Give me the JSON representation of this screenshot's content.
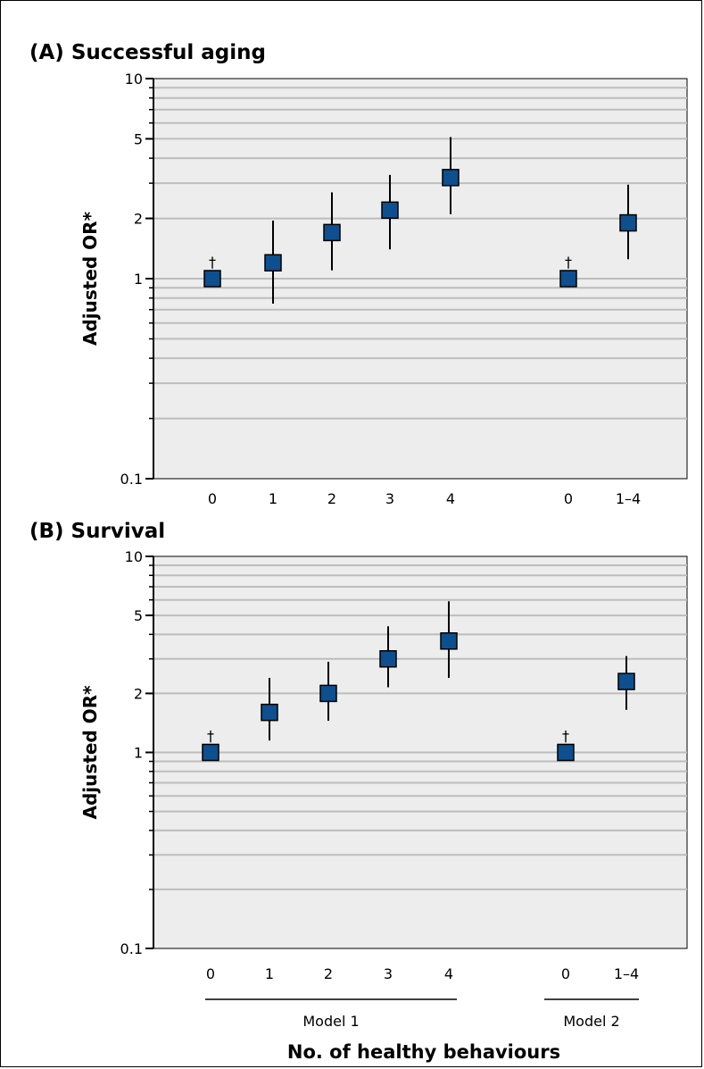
{
  "chart_data": [
    {
      "type": "scatter",
      "title": "(A) Successful aging",
      "ylabel": "Adjusted OR*",
      "yscale": "log",
      "ylim": [
        0.1,
        10
      ],
      "yticks": [
        "10",
        "5",
        "2",
        "1",
        "0.1"
      ],
      "grid": true,
      "categories": [
        "0",
        "1",
        "2",
        "3",
        "4",
        "0",
        "1–4"
      ],
      "points": [
        {
          "x": "0",
          "model": "Model 1",
          "or": 1.0,
          "ci_low": 1.0,
          "ci_high": 1.0,
          "reference": true
        },
        {
          "x": "1",
          "model": "Model 1",
          "or": 1.2,
          "ci_low": 0.75,
          "ci_high": 1.95,
          "reference": false
        },
        {
          "x": "2",
          "model": "Model 1",
          "or": 1.7,
          "ci_low": 1.1,
          "ci_high": 2.7,
          "reference": false
        },
        {
          "x": "3",
          "model": "Model 1",
          "or": 2.2,
          "ci_low": 1.4,
          "ci_high": 3.3,
          "reference": false
        },
        {
          "x": "4",
          "model": "Model 1",
          "or": 3.2,
          "ci_low": 2.1,
          "ci_high": 5.1,
          "reference": false
        },
        {
          "x": "0",
          "model": "Model 2",
          "or": 1.0,
          "ci_low": 1.0,
          "ci_high": 1.0,
          "reference": true
        },
        {
          "x": "1–4",
          "model": "Model 2",
          "or": 1.9,
          "ci_low": 1.25,
          "ci_high": 2.95,
          "reference": false
        }
      ],
      "reference_marker": "†"
    },
    {
      "type": "scatter",
      "title": "(B) Survival",
      "ylabel": "Adjusted OR*",
      "yscale": "log",
      "ylim": [
        0.1,
        10
      ],
      "yticks": [
        "10",
        "5",
        "2",
        "1",
        "0.1"
      ],
      "grid": true,
      "categories": [
        "0",
        "1",
        "2",
        "3",
        "4",
        "0",
        "1–4"
      ],
      "points": [
        {
          "x": "0",
          "model": "Model 1",
          "or": 1.0,
          "ci_low": 1.0,
          "ci_high": 1.0,
          "reference": true
        },
        {
          "x": "1",
          "model": "Model 1",
          "or": 1.6,
          "ci_low": 1.15,
          "ci_high": 2.4,
          "reference": false
        },
        {
          "x": "2",
          "model": "Model 1",
          "or": 2.0,
          "ci_low": 1.45,
          "ci_high": 2.9,
          "reference": false
        },
        {
          "x": "3",
          "model": "Model 1",
          "or": 3.0,
          "ci_low": 2.15,
          "ci_high": 4.4,
          "reference": false
        },
        {
          "x": "4",
          "model": "Model 1",
          "or": 3.7,
          "ci_low": 2.4,
          "ci_high": 5.9,
          "reference": false
        },
        {
          "x": "0",
          "model": "Model 2",
          "or": 1.0,
          "ci_low": 1.0,
          "ci_high": 1.0,
          "reference": true
        },
        {
          "x": "1–4",
          "model": "Model 2",
          "or": 2.3,
          "ci_low": 1.65,
          "ci_high": 3.1,
          "reference": false
        }
      ],
      "reference_marker": "†",
      "groups": [
        {
          "label": "Model 1",
          "categories": [
            "0",
            "1",
            "2",
            "3",
            "4"
          ]
        },
        {
          "label": "Model 2",
          "categories": [
            "0",
            "1–4"
          ]
        }
      ],
      "xlabel": "No. of healthy behaviours"
    }
  ],
  "colors": {
    "marker_fill": "#0d4f8f",
    "plot_background": "#ededed",
    "gridline": "#bdbdbd",
    "axis": "#000000"
  }
}
